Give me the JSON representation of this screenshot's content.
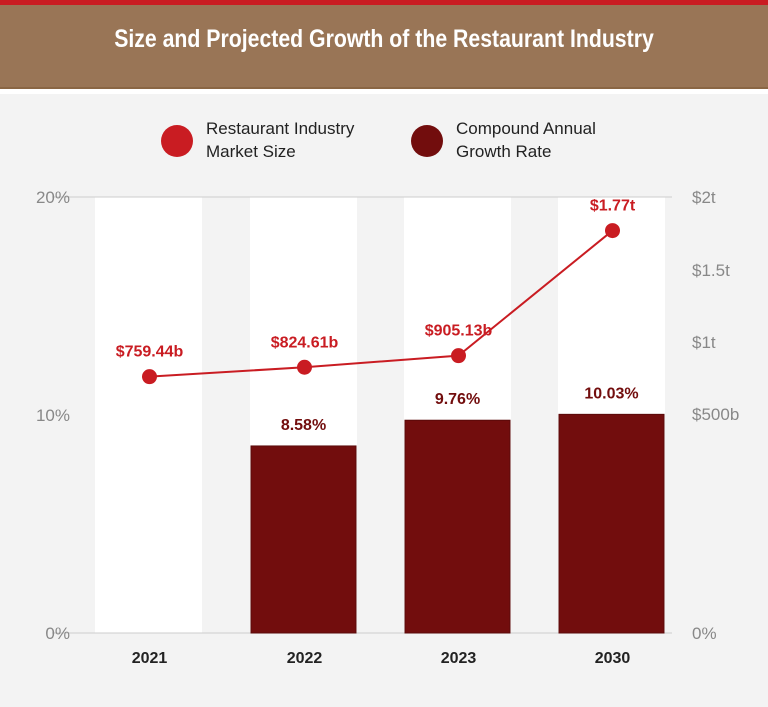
{
  "chart_data": {
    "type": "bar+line",
    "title": "Size and Projected Growth of the Restaurant Industry",
    "categories": [
      "2021",
      "2022",
      "2023",
      "2030"
    ],
    "series": [
      {
        "name": "Restaurant Industry Market Size",
        "type": "line",
        "axis": "right",
        "color": "#c91c22",
        "values": [
          759.44,
          824.61,
          905.13,
          1770
        ],
        "unit": "billion USD",
        "labels": [
          "$759.44b",
          "$824.61b",
          "$905.13b",
          "$1.77t"
        ]
      },
      {
        "name": "Compound Annual Growth Rate",
        "type": "bar",
        "axis": "left",
        "color": "#720d0d",
        "values": [
          null,
          8.58,
          9.76,
          10.03
        ],
        "unit": "%",
        "labels": [
          "",
          "8.58%",
          "9.76%",
          "10.03%"
        ]
      }
    ],
    "legend": {
      "position": "top",
      "items": [
        {
          "line1": "Restaurant Industry",
          "line2": "Market Size",
          "color": "#c91c22"
        },
        {
          "line1": "Compound Annual",
          "line2": "Growth Rate",
          "color": "#720d0d"
        }
      ]
    },
    "left_axis": {
      "ylim": [
        0,
        20
      ],
      "ticks": [
        0,
        10,
        20
      ],
      "tick_labels": [
        "0%",
        "10%",
        "20%"
      ]
    },
    "right_axis": {
      "ticks": [
        0,
        500,
        1000,
        1500,
        2000
      ],
      "tick_labels": [
        "0%",
        "$500b",
        "$1t",
        "$1.5t",
        "$2t"
      ]
    },
    "grid": false
  }
}
